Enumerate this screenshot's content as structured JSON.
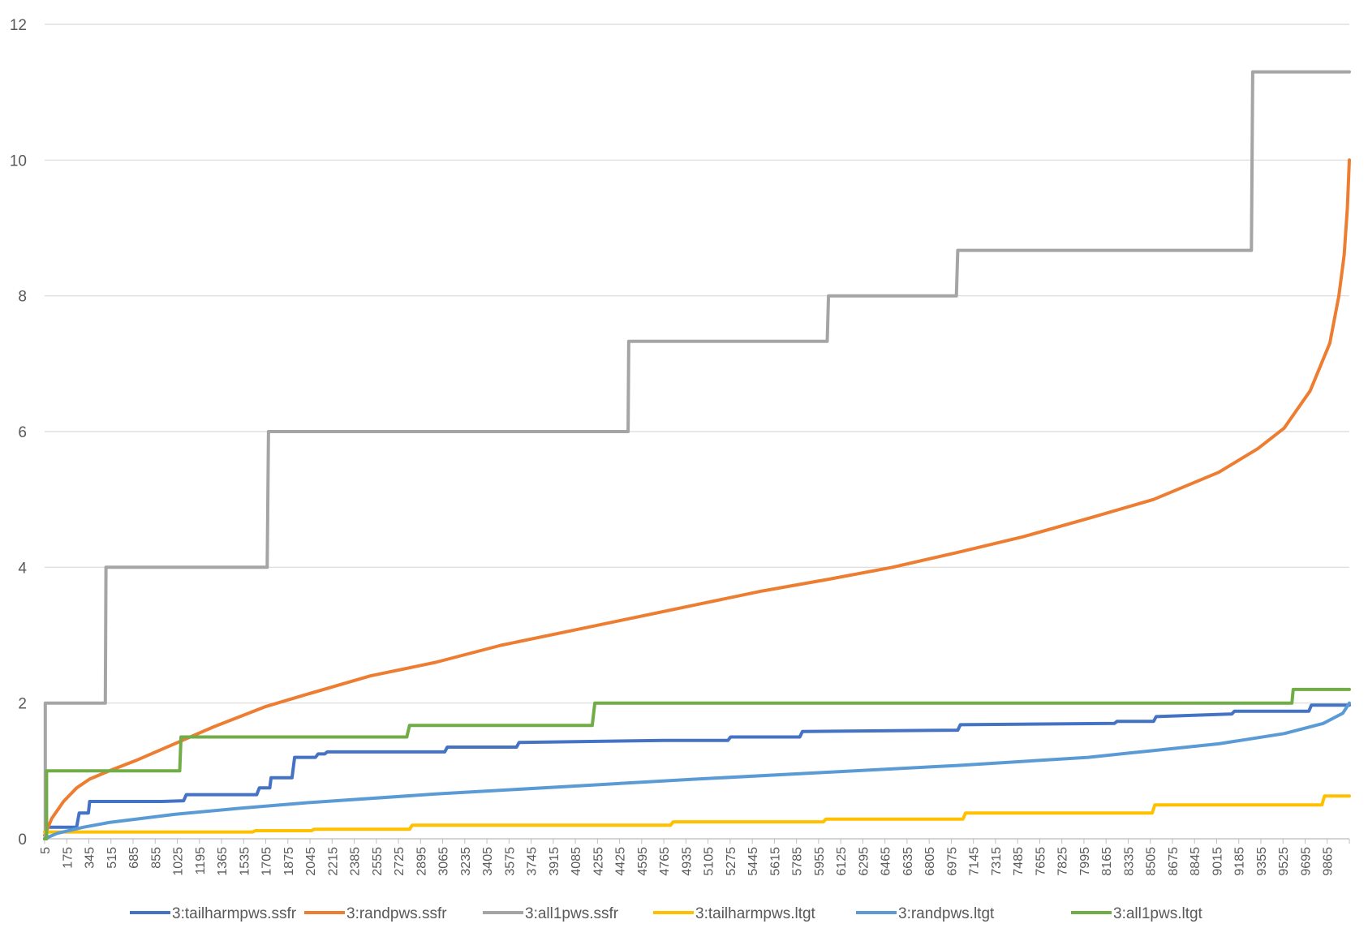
{
  "chart_data": {
    "type": "line",
    "title": "",
    "xlabel": "",
    "ylabel": "",
    "xlim": [
      5,
      10000
    ],
    "ylim": [
      0,
      12
    ],
    "grid": true,
    "legend_position": "bottom",
    "y_ticks": [
      "0",
      "2",
      "4",
      "6",
      "8",
      "10",
      "12"
    ],
    "x_tick_labels": [
      "5",
      "175",
      "345",
      "515",
      "685",
      "855",
      "1025",
      "1195",
      "1365",
      "1535",
      "1705",
      "1875",
      "2045",
      "2215",
      "2385",
      "2555",
      "2725",
      "2895",
      "3065",
      "3235",
      "3405",
      "3575",
      "3745",
      "3915",
      "4085",
      "4255",
      "4425",
      "4595",
      "4765",
      "4935",
      "5105",
      "5275",
      "5445",
      "5615",
      "5785",
      "5955",
      "6125",
      "6295",
      "6465",
      "6635",
      "6805",
      "6975",
      "7145",
      "7315",
      "7485",
      "7655",
      "7825",
      "7995",
      "8165",
      "8335",
      "8505",
      "8675",
      "8845",
      "9015",
      "9185",
      "9355",
      "9525",
      "9695",
      "9865"
    ],
    "series": [
      {
        "name": "3:tailharmpws.ssfr",
        "color": "#4472C4",
        "points": [
          [
            5,
            0
          ],
          [
            20,
            0
          ],
          [
            20,
            0.17
          ],
          [
            250,
            0.17
          ],
          [
            270,
            0.38
          ],
          [
            340,
            0.38
          ],
          [
            350,
            0.55
          ],
          [
            900,
            0.55
          ],
          [
            1070,
            0.56
          ],
          [
            1090,
            0.65
          ],
          [
            1630,
            0.65
          ],
          [
            1650,
            0.75
          ],
          [
            1730,
            0.75
          ],
          [
            1740,
            0.9
          ],
          [
            1900,
            0.9
          ],
          [
            1920,
            1.2
          ],
          [
            2080,
            1.2
          ],
          [
            2100,
            1.25
          ],
          [
            2150,
            1.25
          ],
          [
            2170,
            1.28
          ],
          [
            3070,
            1.28
          ],
          [
            3090,
            1.35
          ],
          [
            3620,
            1.35
          ],
          [
            3640,
            1.42
          ],
          [
            4750,
            1.45
          ],
          [
            5240,
            1.45
          ],
          [
            5260,
            1.5
          ],
          [
            5790,
            1.5
          ],
          [
            5810,
            1.58
          ],
          [
            7000,
            1.6
          ],
          [
            7020,
            1.68
          ],
          [
            8200,
            1.7
          ],
          [
            8220,
            1.73
          ],
          [
            8500,
            1.73
          ],
          [
            8520,
            1.8
          ],
          [
            9100,
            1.84
          ],
          [
            9120,
            1.88
          ],
          [
            9690,
            1.88
          ],
          [
            9710,
            1.97
          ],
          [
            10000,
            1.97
          ]
        ]
      },
      {
        "name": "3:randpws.ssfr",
        "color": "#ED7D31",
        "points": [
          [
            5,
            0.05
          ],
          [
            60,
            0.3
          ],
          [
            150,
            0.55
          ],
          [
            250,
            0.75
          ],
          [
            350,
            0.88
          ],
          [
            500,
            1.0
          ],
          [
            700,
            1.15
          ],
          [
            1000,
            1.4
          ],
          [
            1300,
            1.65
          ],
          [
            1700,
            1.95
          ],
          [
            2000,
            2.12
          ],
          [
            2500,
            2.4
          ],
          [
            3000,
            2.6
          ],
          [
            3500,
            2.85
          ],
          [
            4000,
            3.05
          ],
          [
            4500,
            3.25
          ],
          [
            5000,
            3.45
          ],
          [
            5500,
            3.65
          ],
          [
            6000,
            3.82
          ],
          [
            6500,
            4.0
          ],
          [
            7000,
            4.22
          ],
          [
            7500,
            4.45
          ],
          [
            8000,
            4.72
          ],
          [
            8500,
            5.0
          ],
          [
            9000,
            5.4
          ],
          [
            9300,
            5.75
          ],
          [
            9500,
            6.05
          ],
          [
            9700,
            6.6
          ],
          [
            9850,
            7.3
          ],
          [
            9920,
            8.0
          ],
          [
            9960,
            8.6
          ],
          [
            9985,
            9.3
          ],
          [
            10000,
            10.0
          ]
        ]
      },
      {
        "name": "3:all1pws.ssfr",
        "color": "#A5A5A5",
        "points": [
          [
            5,
            0
          ],
          [
            10,
            0
          ],
          [
            10,
            2.0
          ],
          [
            470,
            2.0
          ],
          [
            475,
            4.0
          ],
          [
            1710,
            4.0
          ],
          [
            1720,
            6.0
          ],
          [
            4475,
            6.0
          ],
          [
            4480,
            7.33
          ],
          [
            6000,
            7.33
          ],
          [
            6010,
            8.0
          ],
          [
            6990,
            8.0
          ],
          [
            7000,
            8.67
          ],
          [
            9250,
            8.67
          ],
          [
            9260,
            11.3
          ],
          [
            10000,
            11.3
          ]
        ]
      },
      {
        "name": "3:tailharmpws.ltgt",
        "color": "#FFC000",
        "points": [
          [
            5,
            0.1
          ],
          [
            1600,
            0.1
          ],
          [
            1620,
            0.12
          ],
          [
            2050,
            0.12
          ],
          [
            2070,
            0.14
          ],
          [
            2800,
            0.14
          ],
          [
            2820,
            0.2
          ],
          [
            4800,
            0.2
          ],
          [
            4820,
            0.25
          ],
          [
            5970,
            0.25
          ],
          [
            5990,
            0.29
          ],
          [
            7040,
            0.29
          ],
          [
            7060,
            0.38
          ],
          [
            8490,
            0.38
          ],
          [
            8510,
            0.5
          ],
          [
            9790,
            0.5
          ],
          [
            9810,
            0.63
          ],
          [
            10000,
            0.63
          ]
        ]
      },
      {
        "name": "3:randpws.ltgt",
        "color": "#5B9BD5",
        "points": [
          [
            5,
            0
          ],
          [
            100,
            0.08
          ],
          [
            300,
            0.17
          ],
          [
            500,
            0.24
          ],
          [
            1000,
            0.36
          ],
          [
            1500,
            0.45
          ],
          [
            2000,
            0.53
          ],
          [
            3000,
            0.66
          ],
          [
            4000,
            0.77
          ],
          [
            5000,
            0.88
          ],
          [
            6000,
            0.98
          ],
          [
            7000,
            1.08
          ],
          [
            8000,
            1.2
          ],
          [
            8500,
            1.3
          ],
          [
            9000,
            1.4
          ],
          [
            9500,
            1.55
          ],
          [
            9800,
            1.7
          ],
          [
            9950,
            1.85
          ],
          [
            10000,
            2.0
          ]
        ]
      },
      {
        "name": "3:all1pws.ltgt",
        "color": "#70AD47",
        "points": [
          [
            5,
            0
          ],
          [
            20,
            0
          ],
          [
            20,
            1.0
          ],
          [
            1040,
            1.0
          ],
          [
            1050,
            1.5
          ],
          [
            2780,
            1.5
          ],
          [
            2800,
            1.67
          ],
          [
            4200,
            1.67
          ],
          [
            4220,
            2.0
          ],
          [
            9560,
            2.0
          ],
          [
            9570,
            2.2
          ],
          [
            10000,
            2.2
          ]
        ]
      }
    ]
  }
}
